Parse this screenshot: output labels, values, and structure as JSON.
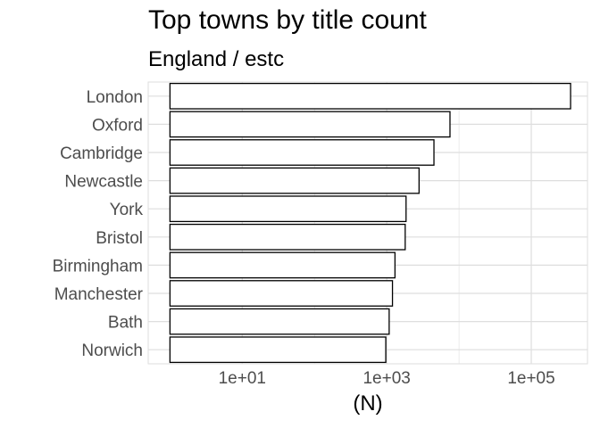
{
  "chart_data": {
    "type": "bar",
    "orientation": "horizontal",
    "title": "Top towns by title count",
    "subtitle": "England / estc",
    "xlabel": "(N)",
    "ylabel": "",
    "x_scale": "log10",
    "xlim": [
      0.5,
      600000
    ],
    "x_ticks": [
      10,
      1000,
      100000
    ],
    "x_tick_labels": [
      "1e+01",
      "1e+03",
      "1e+05"
    ],
    "categories": [
      "London",
      "Oxford",
      "Cambridge",
      "Newcastle",
      "York",
      "Bristol",
      "Birmingham",
      "Manchester",
      "Bath",
      "Norwich"
    ],
    "values": [
      350000,
      7500,
      4500,
      2800,
      1850,
      1800,
      1300,
      1200,
      1080,
      970
    ],
    "grid": true,
    "bar_fill": "#ffffff",
    "bar_stroke": "#000000",
    "grid_color": "#dedede"
  }
}
